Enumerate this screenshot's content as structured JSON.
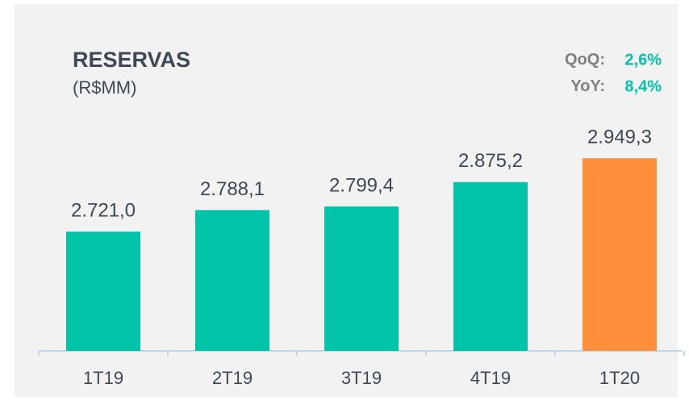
{
  "chart_data": {
    "type": "bar",
    "title": "RESERVAS",
    "subtitle": "(R$MM)",
    "annotations": [
      {
        "label": "QoQ:",
        "value": "2,6%"
      },
      {
        "label": "YoY:",
        "value": "8,4%"
      }
    ],
    "categories": [
      "1T19",
      "2T19",
      "3T19",
      "4T19",
      "1T20"
    ],
    "values": [
      2721.0,
      2788.1,
      2799.4,
      2875.2,
      2949.3
    ],
    "value_labels": [
      "2.721,0",
      "2.788,1",
      "2.799,4",
      "2.875,2",
      "2.949,3"
    ],
    "colors": [
      "#00c4a7",
      "#00c4a7",
      "#00c4a7",
      "#00c4a7",
      "#ff8f3a"
    ],
    "ylim": [
      2350,
      3000
    ]
  }
}
